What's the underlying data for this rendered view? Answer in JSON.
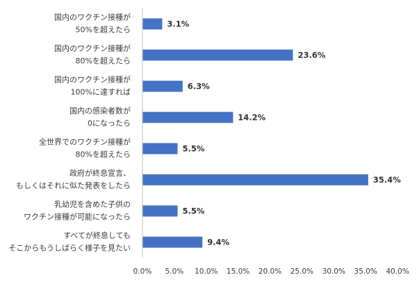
{
  "chart_data": {
    "type": "bar",
    "orientation": "horizontal",
    "categories": [
      [
        "国内のワクチン接種が",
        "50%を超えたら"
      ],
      [
        "国内のワクチン接種が",
        "80%を超えたら"
      ],
      [
        "国内のワクチン接種が",
        "100%に達すれば"
      ],
      [
        "国内の感染者数が",
        "0になったら"
      ],
      [
        "全世界でのワクチン接種が",
        "80%を超えたら"
      ],
      [
        "政府が終息宣言、",
        "もしくはそれに似た発表をしたら"
      ],
      [
        "乳幼児を含めた子供の",
        "ワクチン接種が可能になったら"
      ],
      [
        "すべてが終息しても",
        "そこからもうしばらく様子を見たい"
      ]
    ],
    "values": [
      3.1,
      23.6,
      6.3,
      14.2,
      5.5,
      35.4,
      5.5,
      9.4
    ],
    "value_labels": [
      "3.1%",
      "23.6%",
      "6.3%",
      "14.2%",
      "5.5%",
      "35.4%",
      "5.5%",
      "9.4%"
    ],
    "xlim": [
      0,
      40
    ],
    "x_ticks": [
      "0.0%",
      "5.0%",
      "10.0%",
      "15.0%",
      "20.0%",
      "25.0%",
      "30.0%",
      "35.0%",
      "40.0%"
    ],
    "grid": false,
    "legend": "none"
  },
  "colors": {
    "bar": "#4472C4",
    "axis": "#bfbfbf",
    "text": "#3a3a3a"
  }
}
